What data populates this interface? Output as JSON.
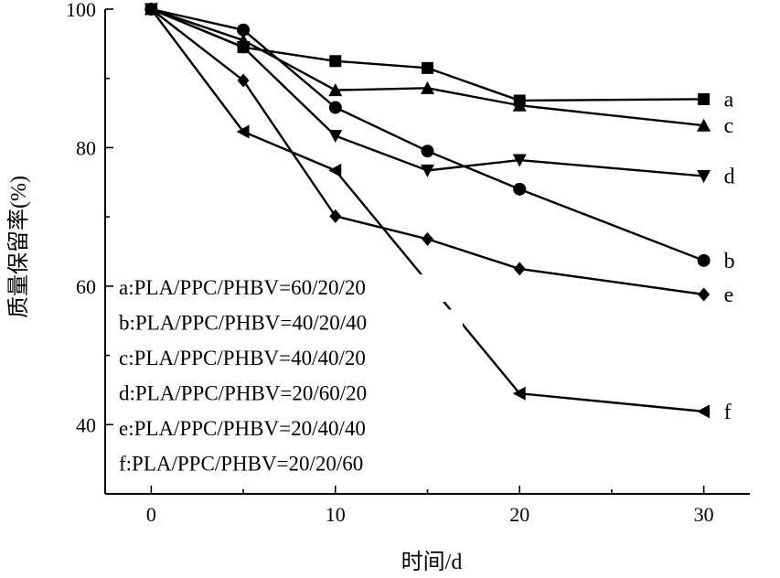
{
  "chart_data": {
    "type": "line",
    "xlabel": "时间/d",
    "ylabel": "质量保留率(%)",
    "xlim": [
      -2.5,
      32.5
    ],
    "ylim": [
      30,
      100
    ],
    "x_ticks": [
      0,
      10,
      20,
      30
    ],
    "y_ticks": [
      40,
      60,
      80,
      100
    ],
    "grid": false,
    "legend_position": "bottom-left",
    "series": [
      {
        "name": "a",
        "marker": "square",
        "legend": "a:PLA/PPC/PHBV=60/20/20",
        "x": [
          0,
          5,
          10,
          15,
          20,
          30
        ],
        "y": [
          100,
          94.5,
          92.5,
          91.5,
          86.8,
          87
        ]
      },
      {
        "name": "b",
        "marker": "circle",
        "legend": "b:PLA/PPC/PHBV=40/20/40",
        "x": [
          0,
          5,
          10,
          15,
          20,
          30
        ],
        "y": [
          100,
          97,
          85.8,
          79.5,
          74,
          63.7
        ]
      },
      {
        "name": "c",
        "marker": "triangle-up",
        "legend": "c:PLA/PPC/PHBV=40/40/20",
        "x": [
          0,
          5,
          10,
          15,
          20,
          30
        ],
        "y": [
          100,
          95.5,
          88.3,
          88.6,
          86.1,
          83.2
        ]
      },
      {
        "name": "d",
        "marker": "triangle-down",
        "legend": "d:PLA/PPC/PHBV=20/60/20",
        "x": [
          0,
          5,
          10,
          15,
          20,
          30
        ],
        "y": [
          100,
          94.5,
          81.7,
          76.7,
          78.2,
          75.9
        ]
      },
      {
        "name": "e",
        "marker": "diamond",
        "legend": "e:PLA/PPC/PHBV=20/40/40",
        "x": [
          0,
          5,
          10,
          15,
          20,
          30
        ],
        "y": [
          100,
          89.7,
          70.1,
          66.8,
          62.5,
          58.8
        ]
      },
      {
        "name": "f",
        "marker": "triangle-left",
        "legend": "f:PLA/PPC/PHBV=20/20/60",
        "x": [
          0,
          5,
          10,
          20,
          30
        ],
        "y": [
          100,
          82.3,
          76.7,
          44.5,
          41.9
        ]
      }
    ]
  }
}
